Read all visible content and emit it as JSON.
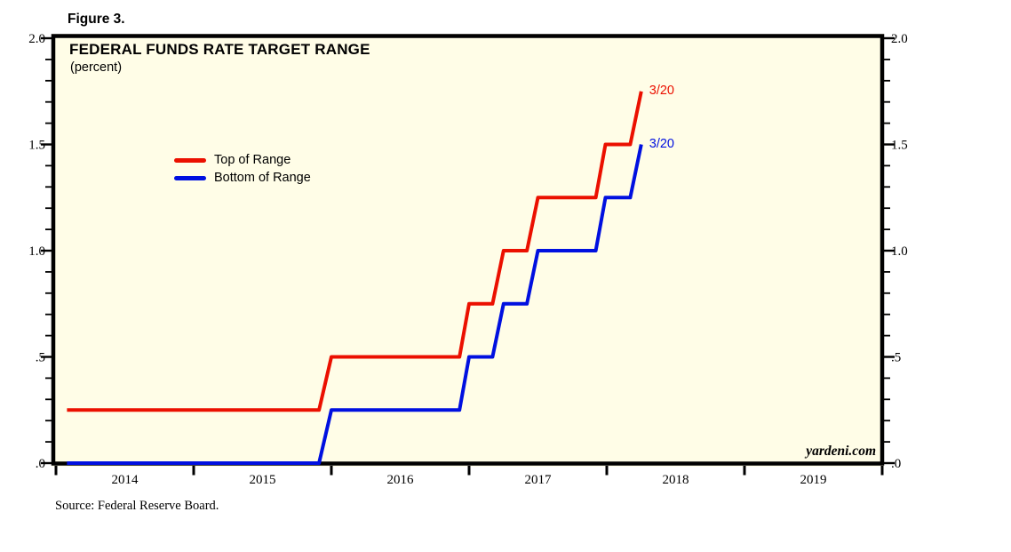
{
  "figure_label": "Figure 3.",
  "chart": {
    "title": "FEDERAL FUNDS RATE TARGET RANGE",
    "subtitle": "(percent)",
    "watermark": "yardeni.com",
    "source": "Source: Federal Reserve Board.",
    "plot_background": "#FFFDE7",
    "frame_color": "#000000"
  },
  "legend": [
    {
      "label": "Top of Range",
      "color": "#EB1000"
    },
    {
      "label": "Bottom of Range",
      "color": "#0010E0"
    }
  ],
  "chart_data": {
    "type": "line",
    "line_style": "step",
    "title": "FEDERAL FUNDS RATE TARGET RANGE",
    "ylabel": "percent",
    "xlim": [
      2014,
      2020
    ],
    "ylim": [
      0.0,
      2.0
    ],
    "grid": false,
    "legend_position": "upper-left-inside",
    "x_ticks": [
      2014,
      2015,
      2016,
      2017,
      2018,
      2019,
      2020
    ],
    "x_tick_labels": [
      "2014",
      "2015",
      "2016",
      "2017",
      "2018",
      "2019"
    ],
    "y_ticks": [
      {
        "value": 0.0,
        "label": ".0"
      },
      {
        "value": 0.5,
        "label": ".5"
      },
      {
        "value": 1.0,
        "label": "1.0"
      },
      {
        "value": 1.5,
        "label": "1.5"
      },
      {
        "value": 2.0,
        "label": "2.0"
      }
    ],
    "y_minor_tick_step": 0.1,
    "y_axis_sides": [
      "left",
      "right"
    ],
    "series": [
      {
        "name": "Top of Range",
        "color": "#EB1000",
        "end_label": "3/20",
        "points": [
          [
            2014.08,
            0.25
          ],
          [
            2015.91,
            0.25
          ],
          [
            2016.0,
            0.5
          ],
          [
            2016.93,
            0.5
          ],
          [
            2017.0,
            0.75
          ],
          [
            2017.17,
            0.75
          ],
          [
            2017.25,
            1.0
          ],
          [
            2017.42,
            1.0
          ],
          [
            2017.5,
            1.25
          ],
          [
            2017.92,
            1.25
          ],
          [
            2017.99,
            1.5
          ],
          [
            2018.17,
            1.5
          ],
          [
            2018.25,
            1.75
          ]
        ]
      },
      {
        "name": "Bottom of Range",
        "color": "#0010E0",
        "end_label": "3/20",
        "points": [
          [
            2014.08,
            0.0
          ],
          [
            2015.91,
            0.0
          ],
          [
            2016.0,
            0.25
          ],
          [
            2016.93,
            0.25
          ],
          [
            2017.0,
            0.5
          ],
          [
            2017.17,
            0.5
          ],
          [
            2017.25,
            0.75
          ],
          [
            2017.42,
            0.75
          ],
          [
            2017.5,
            1.0
          ],
          [
            2017.92,
            1.0
          ],
          [
            2017.99,
            1.25
          ],
          [
            2018.17,
            1.25
          ],
          [
            2018.25,
            1.5
          ]
        ]
      }
    ]
  }
}
